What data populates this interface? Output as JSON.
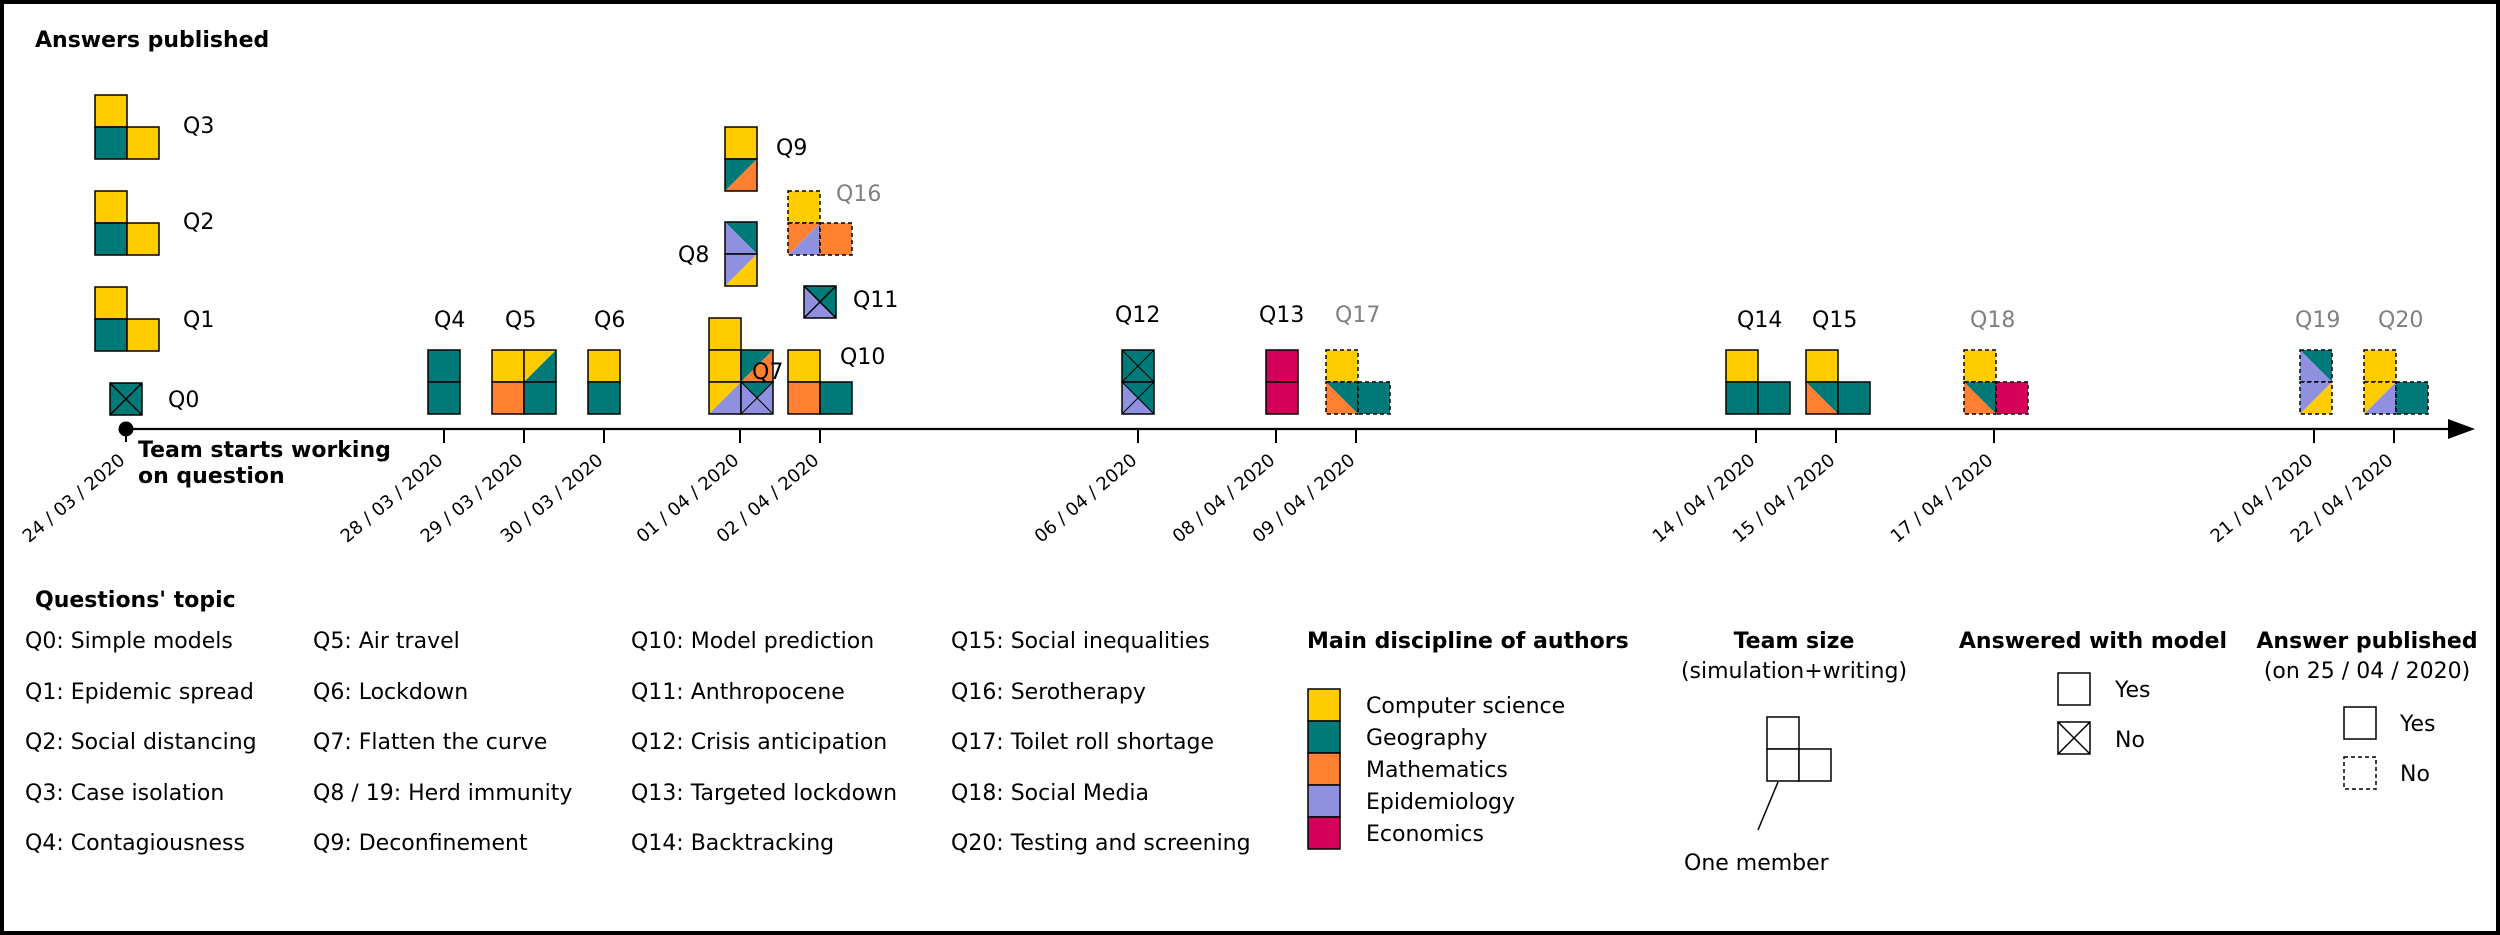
{
  "titles": {
    "answers_published": "Answers published",
    "team_starts": "Team starts working",
    "team_starts_2": "on question"
  },
  "colors": {
    "cs": "#FFCC00",
    "geo": "#007A78",
    "math": "#FF8030",
    "epi": "#9090E0",
    "eco": "#D4005A"
  },
  "dates": [
    "24 / 03 / 2020",
    "28 / 03 / 2020",
    "29 / 03 / 2020",
    "30 / 03 / 2020",
    "01 / 04 / 2020",
    "02 / 04 / 2020",
    "06 / 04 / 2020",
    "08 / 04 / 2020",
    "09 / 04 / 2020",
    "14 / 04 / 2020",
    "15 / 04 / 2020",
    "17 / 04 / 2020",
    "21 / 04 / 2020",
    "22 / 04 / 2020"
  ],
  "q": {
    "q0": "Q0",
    "q1": "Q1",
    "q2": "Q2",
    "q3": "Q3",
    "q4": "Q4",
    "q5": "Q5",
    "q6": "Q6",
    "q7": "Q7",
    "q8": "Q8",
    "q9": "Q9",
    "q10": "Q10",
    "q11": "Q11",
    "q12": "Q12",
    "q13": "Q13",
    "q14": "Q14",
    "q15": "Q15",
    "q16": "Q16",
    "q17": "Q17",
    "q18": "Q18",
    "q19": "Q19",
    "q20": "Q20"
  },
  "topics": {
    "header": "Questions' topic",
    "col1": [
      "Q0: Simple models",
      "Q1: Epidemic spread",
      "Q2: Social distancing",
      "Q3: Case isolation",
      "Q4: Contagiousness"
    ],
    "col2": [
      "Q5: Air travel",
      "Q6: Lockdown",
      "Q7: Flatten the curve",
      "Q8 / 19: Herd immunity",
      "Q9: Deconfinement"
    ],
    "col3": [
      "Q10: Model prediction",
      "Q11: Anthropocene",
      "Q12: Crisis anticipation",
      "Q13: Targeted lockdown",
      "Q14: Backtracking"
    ],
    "col4": [
      "Q15: Social inequalities",
      "Q16: Serotherapy",
      "Q17: Toilet roll shortage",
      "Q18: Social Media",
      "Q20: Testing and screening"
    ]
  },
  "legend": {
    "discipline_title": "Main discipline of authors",
    "disciplines": [
      "Computer science",
      "Geography",
      "Mathematics",
      "Epidemiology",
      "Economics"
    ],
    "team_size_title": "Team size",
    "team_size_sub": "(simulation+writing)",
    "one_member": "One member",
    "model_title": "Answered with model",
    "yes": "Yes",
    "no": "No",
    "published_title": "Answer published",
    "published_sub": "(on 25 / 04 / 2020)"
  }
}
